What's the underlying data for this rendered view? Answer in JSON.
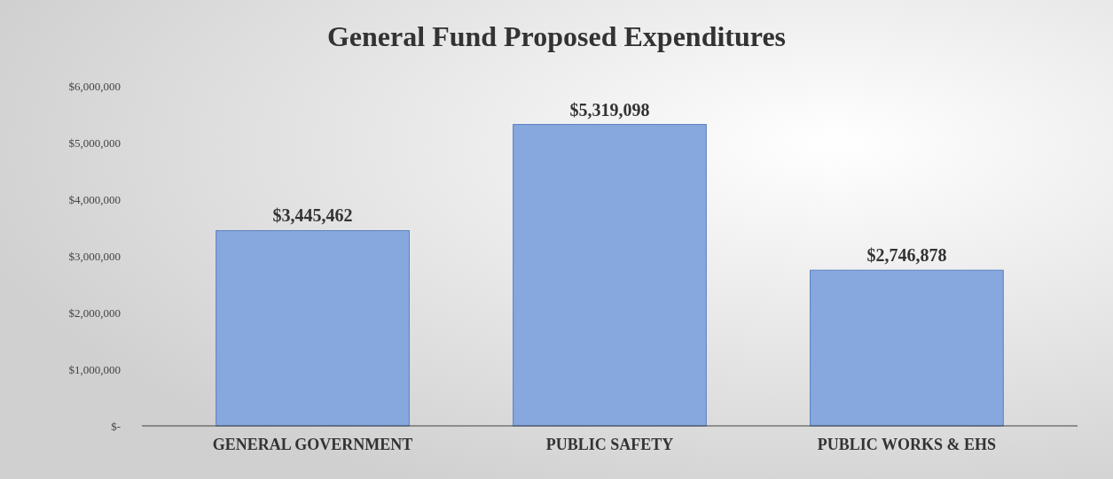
{
  "chart_data": {
    "type": "bar",
    "title": "General Fund Proposed Expenditures",
    "categories": [
      "GENERAL GOVERNMENT",
      "PUBLIC SAFETY",
      "PUBLIC WORKS & EHS"
    ],
    "values": [
      3445462,
      5319098,
      2746878
    ],
    "value_labels": [
      "$3,445,462",
      "$5,319,098",
      "$2,746,878"
    ],
    "color": "#86a8df",
    "ylim": [
      0,
      6000000
    ],
    "yticks": [
      {
        "value": 0,
        "label": "$-"
      },
      {
        "value": 1000000,
        "label": "$1,000,000"
      },
      {
        "value": 2000000,
        "label": "$2,000,000"
      },
      {
        "value": 3000000,
        "label": "$3,000,000"
      },
      {
        "value": 4000000,
        "label": "$4,000,000"
      },
      {
        "value": 5000000,
        "label": "$5,000,000"
      },
      {
        "value": 6000000,
        "label": "$6,000,000"
      }
    ],
    "grid": false
  }
}
